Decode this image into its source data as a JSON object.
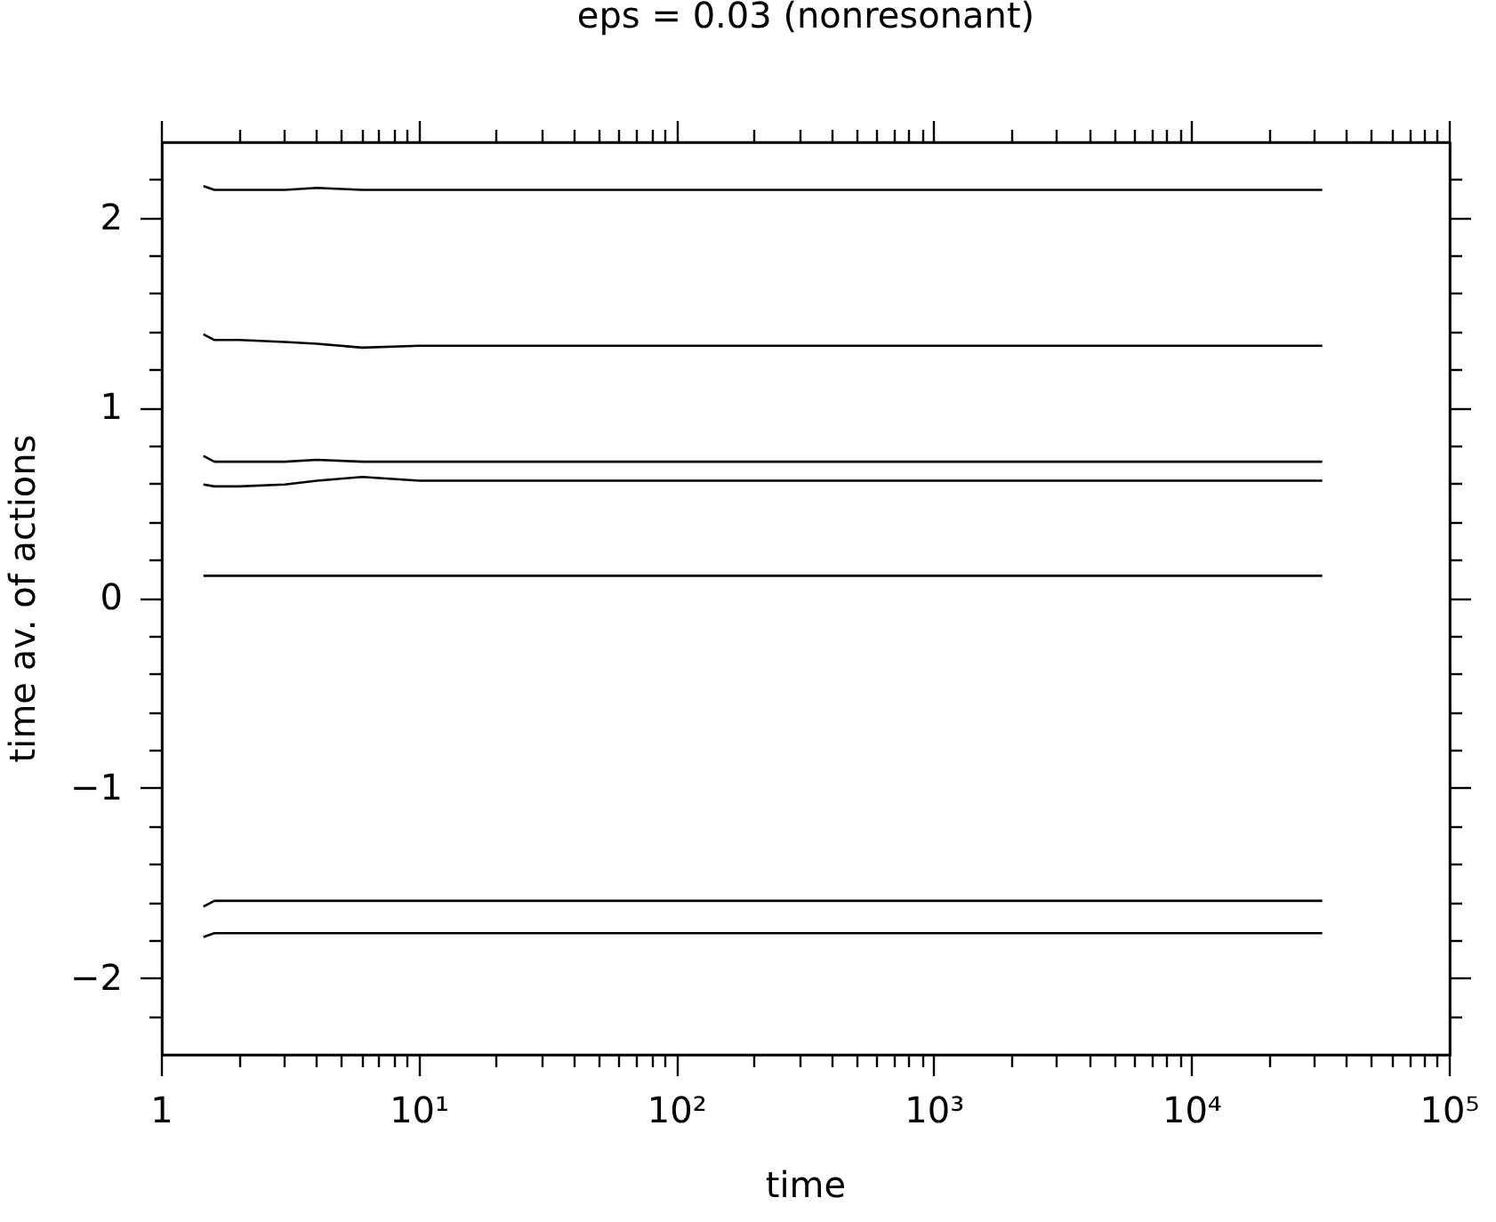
{
  "chart_data": {
    "type": "line",
    "title": "eps = 0.03  (nonresonant)",
    "xlabel": "time",
    "ylabel": "time av. of actions",
    "x": [
      1.45,
      1.6,
      2,
      3,
      4,
      6,
      10,
      20,
      50,
      100,
      1000,
      10000,
      32000
    ],
    "series": [
      {
        "color": "#000000",
        "values": [
          2.17,
          2.15,
          2.15,
          2.15,
          2.16,
          2.15,
          2.15,
          2.15,
          2.15,
          2.15,
          2.15,
          2.15,
          2.15
        ]
      },
      {
        "color": "#000000",
        "values": [
          1.39,
          1.36,
          1.36,
          1.35,
          1.34,
          1.32,
          1.33,
          1.33,
          1.33,
          1.33,
          1.33,
          1.33,
          1.33
        ]
      },
      {
        "color": "#000000",
        "values": [
          0.75,
          0.72,
          0.72,
          0.72,
          0.73,
          0.72,
          0.72,
          0.72,
          0.72,
          0.72,
          0.72,
          0.72,
          0.72
        ]
      },
      {
        "color": "#000000",
        "values": [
          0.6,
          0.59,
          0.59,
          0.6,
          0.62,
          0.64,
          0.62,
          0.62,
          0.62,
          0.62,
          0.62,
          0.62,
          0.62
        ]
      },
      {
        "color": "#000000",
        "values": [
          0.12,
          0.12,
          0.12,
          0.12,
          0.12,
          0.12,
          0.12,
          0.12,
          0.12,
          0.12,
          0.12,
          0.12,
          0.12
        ]
      },
      {
        "color": "#000000",
        "values": [
          -1.62,
          -1.59,
          -1.59,
          -1.59,
          -1.59,
          -1.59,
          -1.59,
          -1.59,
          -1.59,
          -1.59,
          -1.59,
          -1.59,
          -1.59
        ]
      },
      {
        "color": "#000000",
        "values": [
          -1.78,
          -1.76,
          -1.76,
          -1.76,
          -1.76,
          -1.76,
          -1.76,
          -1.76,
          -1.76,
          -1.76,
          -1.76,
          -1.76,
          -1.76
        ]
      }
    ],
    "log": "x",
    "grid": false,
    "marker": "none",
    "line_style": "solid",
    "xlim": [
      1,
      100000
    ],
    "xticks": [
      1,
      {
        "value": 2,
        "label": null
      },
      {
        "value": 3,
        "label": null
      },
      {
        "value": 4,
        "label": null
      },
      {
        "value": 5,
        "label": null
      },
      {
        "value": 6,
        "label": null
      },
      {
        "value": 7,
        "label": null
      },
      {
        "value": 8,
        "label": null
      },
      {
        "value": 9,
        "label": null
      },
      {
        "value": 10,
        "label": "10¹"
      },
      {
        "value": 20,
        "label": null
      },
      {
        "value": 30,
        "label": null
      },
      {
        "value": 40,
        "label": null
      },
      {
        "value": 50,
        "label": null
      },
      {
        "value": 60,
        "label": null
      },
      {
        "value": 70,
        "label": null
      },
      {
        "value": 80,
        "label": null
      },
      {
        "value": 90,
        "label": null
      },
      {
        "value": 100,
        "label": "10²"
      },
      {
        "value": 200,
        "label": null
      },
      {
        "value": 300,
        "label": null
      },
      {
        "value": 400,
        "label": null
      },
      {
        "value": 500,
        "label": null
      },
      {
        "value": 600,
        "label": null
      },
      {
        "value": 700,
        "label": null
      },
      {
        "value": 800,
        "label": null
      },
      {
        "value": 900,
        "label": null
      },
      {
        "value": 1000,
        "label": "10³"
      },
      {
        "value": 2000,
        "label": null
      },
      {
        "value": 3000,
        "label": null
      },
      {
        "value": 4000,
        "label": null
      },
      {
        "value": 5000,
        "label": null
      },
      {
        "value": 6000,
        "label": null
      },
      {
        "value": 7000,
        "label": null
      },
      {
        "value": 8000,
        "label": null
      },
      {
        "value": 9000,
        "label": null
      },
      {
        "value": 10000,
        "label": "10⁴"
      },
      {
        "value": 20000,
        "label": null
      },
      {
        "value": 30000,
        "label": null
      },
      {
        "value": 40000,
        "label": null
      },
      {
        "value": 50000,
        "label": null
      },
      {
        "value": 60000,
        "label": null
      },
      {
        "value": 70000,
        "label": null
      },
      {
        "value": 80000,
        "label": null
      },
      {
        "value": 90000,
        "label": null
      },
      {
        "value": 100000,
        "label": "10⁵"
      }
    ],
    "ylim": [
      -2.4,
      2.4
    ],
    "yticks": [
      {
        "value": -2.2,
        "label": null
      },
      {
        "value": -2,
        "label": "−2"
      },
      {
        "value": -1.8,
        "label": null
      },
      {
        "value": -1.6,
        "label": null
      },
      {
        "value": -1.4,
        "label": null
      },
      {
        "value": -1.2,
        "label": null
      },
      {
        "value": -1,
        "label": "−1"
      },
      {
        "value": -0.8,
        "label": null
      },
      {
        "value": -0.6,
        "label": null
      },
      {
        "value": -0.4,
        "label": null
      },
      {
        "value": -0.2,
        "label": null
      },
      0,
      {
        "value": 0.2,
        "label": null
      },
      {
        "value": 0.4,
        "label": null
      },
      {
        "value": 0.6,
        "label": null
      },
      {
        "value": 0.8,
        "label": null
      },
      1,
      {
        "value": 1.2,
        "label": null
      },
      {
        "value": 1.4,
        "label": null
      },
      {
        "value": 1.6,
        "label": null
      },
      {
        "value": 1.8,
        "label": null
      },
      2,
      {
        "value": 2.2,
        "label": null
      }
    ]
  }
}
